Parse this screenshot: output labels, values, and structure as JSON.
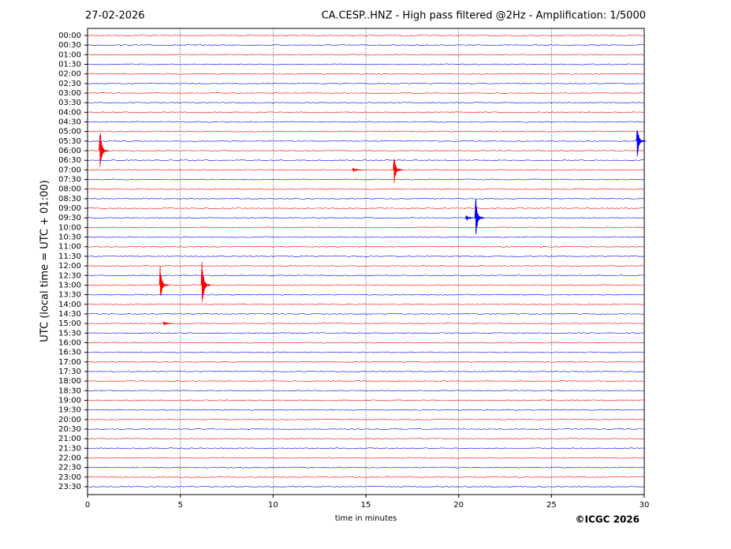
{
  "chart_data": {
    "type": "helicorder",
    "date": "27-02-2026",
    "title": "CA.CESP..HNZ - High pass filtered @2Hz - Amplification: 1/5000",
    "y_label": "UTC (local time = UTC + 01:00)",
    "x_label": "time in minutes",
    "copyright": "©ICGC 2026",
    "categories": [
      "00:00",
      "00:30",
      "01:00",
      "01:30",
      "02:00",
      "02:30",
      "03:00",
      "03:30",
      "04:00",
      "04:30",
      "05:00",
      "05:30",
      "06:00",
      "06:30",
      "07:00",
      "07:30",
      "08:00",
      "08:30",
      "09:00",
      "09:30",
      "10:00",
      "10:30",
      "11:00",
      "11:30",
      "12:00",
      "12:30",
      "13:00",
      "13:30",
      "14:00",
      "14:30",
      "15:00",
      "15:30",
      "16:00",
      "16:30",
      "17:00",
      "17:30",
      "18:00",
      "18:30",
      "19:00",
      "19:30",
      "20:00",
      "20:30",
      "21:00",
      "21:30",
      "22:00",
      "22:30",
      "23:00",
      "23:30"
    ],
    "colors": [
      "#ff0000",
      "#0000ff"
    ],
    "xlim": [
      0,
      30
    ],
    "xticks": [
      0,
      5,
      10,
      15,
      20,
      25,
      30
    ],
    "grid": true,
    "events": [
      {
        "row": "05:30",
        "x": 29.7,
        "amplitude": 2.0
      },
      {
        "row": "06:00",
        "x": 0.75,
        "amplitude": 2.8
      },
      {
        "row": "07:00",
        "x": 14.4,
        "amplitude": 0.3
      },
      {
        "row": "07:00",
        "x": 16.6,
        "amplitude": 1.7
      },
      {
        "row": "09:30",
        "x": 20.5,
        "amplitude": 0.4
      },
      {
        "row": "09:30",
        "x": 21.0,
        "amplitude": 2.5
      },
      {
        "row": "13:00",
        "x": 4.0,
        "amplitude": 2.0
      },
      {
        "row": "13:00",
        "x": 6.25,
        "amplitude": 3.2
      },
      {
        "row": "15:00",
        "x": 4.2,
        "amplitude": 0.3
      }
    ]
  }
}
